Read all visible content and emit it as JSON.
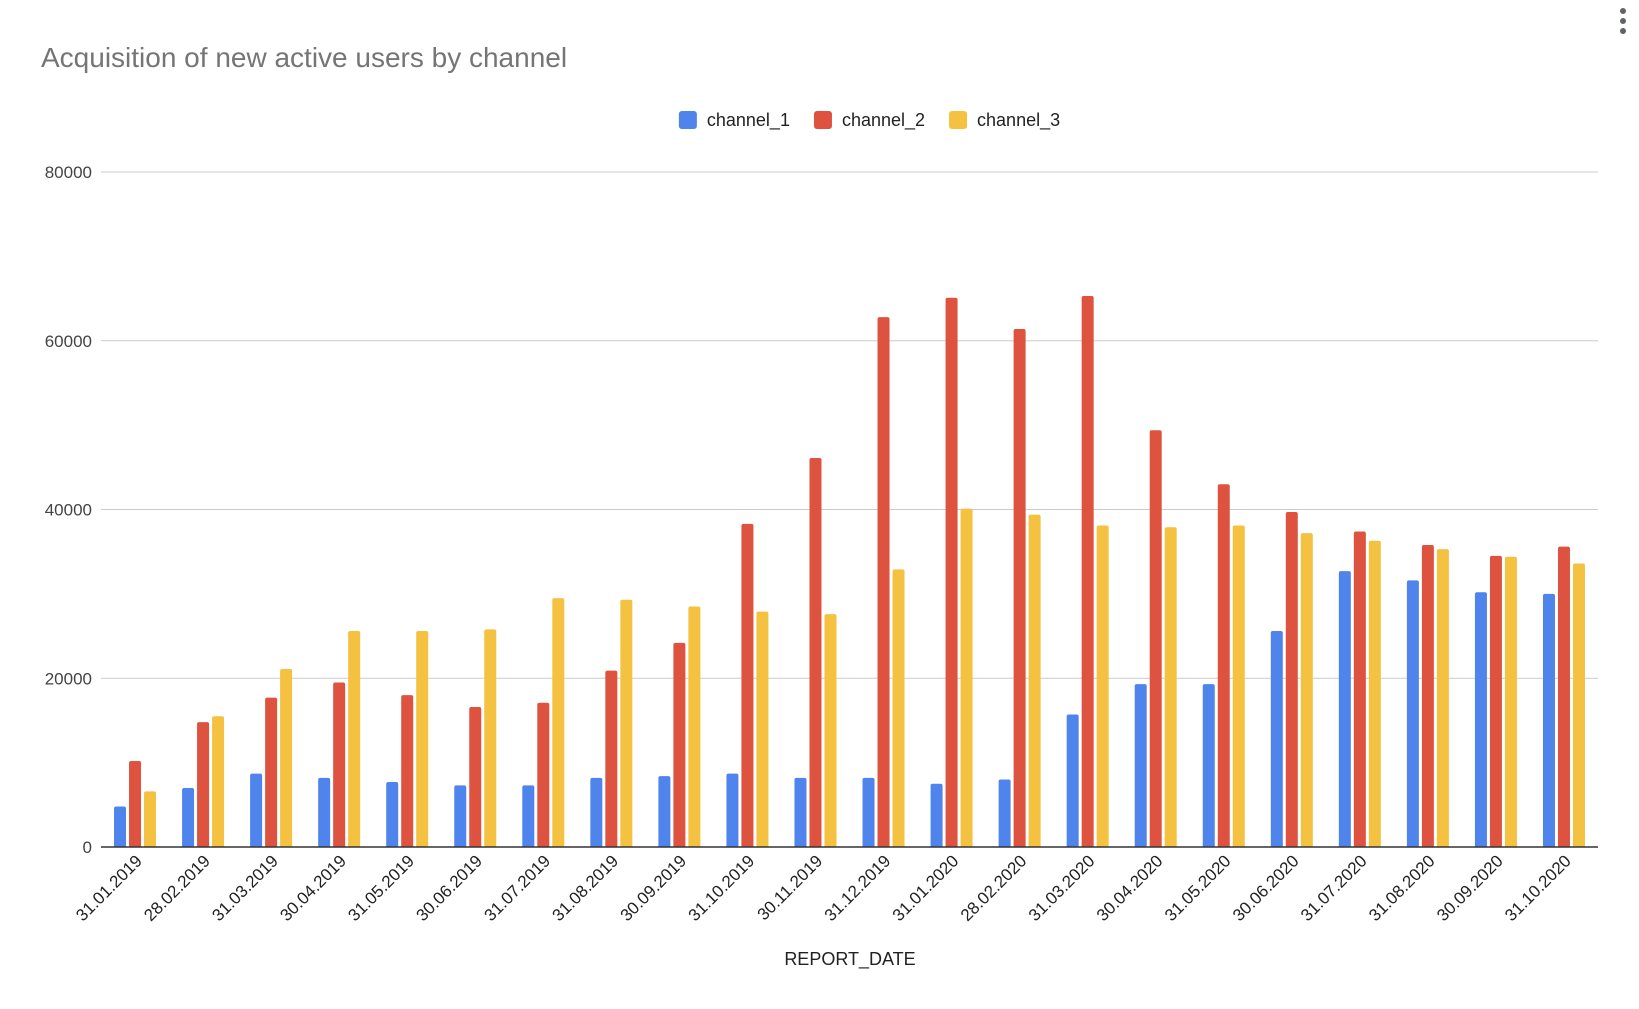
{
  "menu_icon": "more-vertical-icon",
  "chart_data": {
    "type": "bar",
    "title": "Acquisition of new active users by channel",
    "xlabel": "REPORT_DATE",
    "ylabel": "",
    "ylim": [
      0,
      80000
    ],
    "yticks": [
      0,
      20000,
      40000,
      60000,
      80000
    ],
    "ytick_labels": [
      "0",
      "20000",
      "40000",
      "60000",
      "80000"
    ],
    "grid": true,
    "legend_position": "top-center",
    "categories": [
      "31.01.2019",
      "28.02.2019",
      "31.03.2019",
      "30.04.2019",
      "31.05.2019",
      "30.06.2019",
      "31.07.2019",
      "31.08.2019",
      "30.09.2019",
      "31.10.2019",
      "30.11.2019",
      "31.12.2019",
      "31.01.2020",
      "28.02.2020",
      "31.03.2020",
      "30.04.2020",
      "31.05.2020",
      "30.06.2020",
      "31.07.2020",
      "31.08.2020",
      "30.09.2020",
      "31.10.2020"
    ],
    "series": [
      {
        "name": "channel_1",
        "color": "#4f84ec",
        "values": [
          4800,
          7000,
          8700,
          8200,
          7700,
          7300,
          7300,
          8200,
          8400,
          8700,
          8200,
          8200,
          7500,
          8000,
          15700,
          19300,
          19300,
          25600,
          32700,
          31600,
          30200,
          30000
        ]
      },
      {
        "name": "channel_2",
        "color": "#de5240",
        "values": [
          10200,
          14800,
          17700,
          19500,
          18000,
          16600,
          17100,
          20900,
          24200,
          38300,
          46100,
          62800,
          65100,
          61400,
          65300,
          49400,
          43000,
          39700,
          37400,
          35800,
          34500,
          35600
        ]
      },
      {
        "name": "channel_3",
        "color": "#f4c141",
        "values": [
          6600,
          15500,
          21100,
          25600,
          25600,
          25800,
          29500,
          29300,
          28500,
          27900,
          27600,
          32900,
          40100,
          39400,
          38100,
          37900,
          38100,
          37200,
          36300,
          35300,
          34400,
          33600
        ]
      }
    ]
  }
}
